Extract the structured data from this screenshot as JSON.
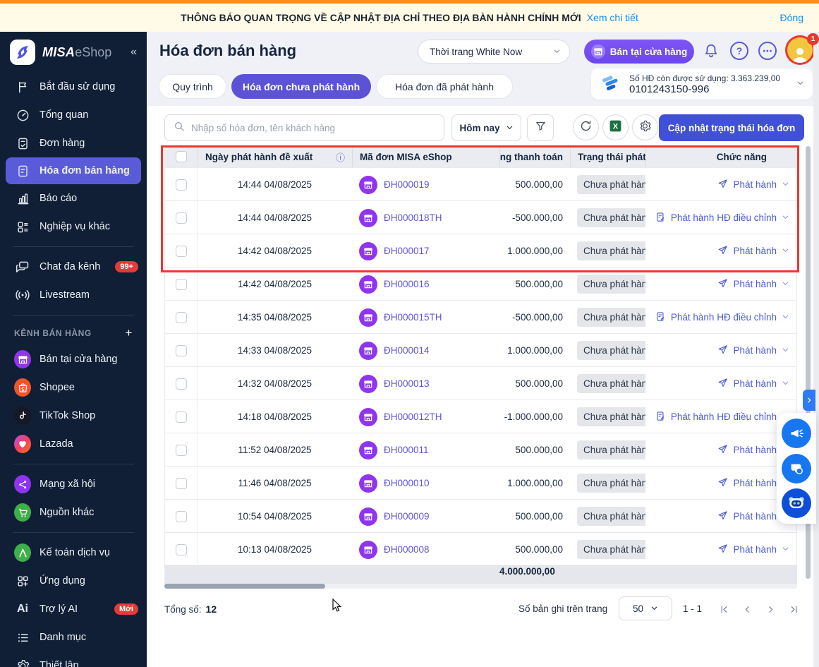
{
  "colors": {
    "top_strip": "#ff8d1a",
    "banner_bg": "#fffbe7",
    "link": "#1a8cea",
    "sidebar_bg": "#101f35",
    "sidebar_active": "#5a5bd8",
    "tab_active": "#5b52d5",
    "primary_button": "#4050d8",
    "store_button": "#744df2",
    "order_icon": "#8f35f0",
    "highlight_rect": "#e8392e",
    "status_pill_bg": "#e4e6ea",
    "float_button": "#1677f0",
    "avatar_bg": "#f4c63d",
    "badge_red": "#e23b38"
  },
  "banner": {
    "text": "THÔNG BÁO QUAN TRỌNG VỀ CẬP NHẬT ĐỊA CHỈ THEO ĐỊA BÀN HÀNH CHÍNH MỚI",
    "link": "Xem chi tiết",
    "close": "Đóng"
  },
  "sidebar": {
    "brand": {
      "bold": "MISA",
      "light": "eShop",
      "collapse": "«"
    },
    "groups": [
      {
        "items": [
          {
            "slug": "bat-dau-su-dung",
            "icon": "flag",
            "label": "Bắt đầu sử dụng"
          },
          {
            "slug": "tong-quan",
            "icon": "gauge",
            "label": "Tổng quan"
          },
          {
            "slug": "don-hang",
            "icon": "order",
            "label": "Đơn hàng"
          },
          {
            "slug": "hoa-don-ban-hang",
            "icon": "invoice",
            "label": "Hóa đơn bán hàng",
            "active": true
          },
          {
            "slug": "bao-cao",
            "icon": "chart",
            "label": "Báo cáo"
          },
          {
            "slug": "nghiep-vu-khac",
            "icon": "modules",
            "label": "Nghiệp vụ khác"
          }
        ]
      },
      {
        "items": [
          {
            "slug": "chat-da-kenh",
            "icon": "chat",
            "label": "Chat đa kênh",
            "badge": "99+"
          },
          {
            "slug": "livestream",
            "icon": "live",
            "label": "Livestream"
          }
        ]
      },
      {
        "header": {
          "label": "KÊNH BÁN HÀNG",
          "action": "+"
        },
        "items": [
          {
            "slug": "ban-tai-cua-hang",
            "icon": "store",
            "circle": "#8f35f0",
            "label": "Bán tại cửa hàng"
          },
          {
            "slug": "shopee",
            "icon": "shopee",
            "circle": "#f35426",
            "label": "Shopee"
          },
          {
            "slug": "tiktok-shop",
            "icon": "tiktok",
            "circle": "#161823",
            "label": "TikTok Shop"
          },
          {
            "slug": "lazada",
            "icon": "lazada",
            "circle": "linear-gradient(135deg,#a855f7,#f43f5e,#f97316)",
            "label": "Lazada"
          }
        ]
      },
      {
        "items": [
          {
            "slug": "mang-xa-hoi",
            "icon": "network",
            "circle": "#8f35f0",
            "label": "Mạng xã hội"
          },
          {
            "slug": "nguon-khac",
            "icon": "cart",
            "circle": "#3fae49",
            "label": "Nguồn khác"
          }
        ]
      },
      {
        "items": [
          {
            "slug": "ke-toan-dich-vu",
            "icon": "lambda",
            "circle": "#3fae49",
            "label": "Kế toán dịch vụ"
          },
          {
            "slug": "ung-dung",
            "icon": "apps",
            "label": "Ứng dụng"
          },
          {
            "slug": "tro-ly-ai",
            "icon": "ai",
            "label": "Trợ lý AI",
            "badge": "Mới"
          },
          {
            "slug": "danh-muc",
            "icon": "list",
            "label": "Danh mục"
          },
          {
            "slug": "thiet-lap",
            "icon": "gear",
            "label": "Thiết lập"
          }
        ]
      }
    ]
  },
  "header": {
    "title": "Hóa đơn bán hàng",
    "store_selector": "Thời trang White Now",
    "store_button": "Bán tại cửa hàng",
    "avatar_badge": "1"
  },
  "tabs": [
    {
      "label": "Quy trình"
    },
    {
      "label": "Hóa đơn chưa phát hành",
      "active": true
    },
    {
      "label": "Hóa đơn đã phát hành"
    }
  ],
  "quota": {
    "line1": "Số HĐ còn được sử dụng: 3.363.239,00",
    "line2": "0101243150-996"
  },
  "toolbar": {
    "search_placeholder": "Nhập số hóa đơn, tên khách hàng",
    "date_filter": "Hôm nay",
    "update_button": "Cập nhật trạng thái hóa đơn"
  },
  "table": {
    "headers": {
      "date": "Ngày phát hành đề xuất",
      "code": "Mã đơn MISA eShop",
      "amount": "Tổng thanh toán",
      "status": "Trạng thái phát hành",
      "action": "Chức năng"
    },
    "status_label": "Chưa phát hành",
    "action_publish": "Phát hành",
    "action_adjust": "Phát hành HĐ điều chỉnh",
    "rows": [
      {
        "time": "14:44 04/08/2025",
        "code": "ĐH000019",
        "amount": "500.000,00",
        "type": "publish"
      },
      {
        "time": "14:44 04/08/2025",
        "code": "ĐH000018TH",
        "amount": "-500.000,00",
        "type": "adjust"
      },
      {
        "time": "14:42 04/08/2025",
        "code": "ĐH000017",
        "amount": "1.000.000,00",
        "type": "publish"
      },
      {
        "time": "14:42 04/08/2025",
        "code": "ĐH000016",
        "amount": "500.000,00",
        "type": "publish"
      },
      {
        "time": "14:35 04/08/2025",
        "code": "ĐH000015TH",
        "amount": "-500.000,00",
        "type": "adjust"
      },
      {
        "time": "14:33 04/08/2025",
        "code": "ĐH000014",
        "amount": "1.000.000,00",
        "type": "publish"
      },
      {
        "time": "14:32 04/08/2025",
        "code": "ĐH000013",
        "amount": "500.000,00",
        "type": "publish"
      },
      {
        "time": "14:18 04/08/2025",
        "code": "ĐH000012TH",
        "amount": "-1.000.000,00",
        "type": "adjust"
      },
      {
        "time": "11:52 04/08/2025",
        "code": "ĐH000011",
        "amount": "500.000,00",
        "type": "publish"
      },
      {
        "time": "11:46 04/08/2025",
        "code": "ĐH000010",
        "amount": "1.000.000,00",
        "type": "publish"
      },
      {
        "time": "10:54 04/08/2025",
        "code": "ĐH000009",
        "amount": "500.000,00",
        "type": "publish"
      },
      {
        "time": "10:13 04/08/2025",
        "code": "ĐH000008",
        "amount": "500.000,00",
        "type": "publish"
      }
    ],
    "summary_total": "4.000.000,00"
  },
  "footer": {
    "total_label": "Tổng số:",
    "total_value": "12",
    "per_page_label": "Số bản ghi trên trang",
    "per_page_value": "50",
    "range": "1 - 1"
  }
}
